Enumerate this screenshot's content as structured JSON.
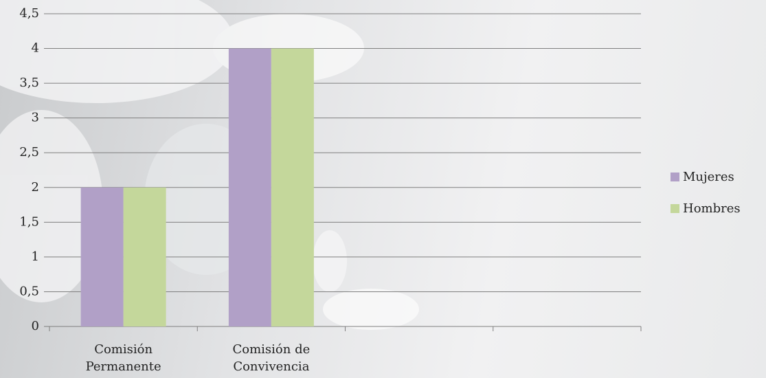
{
  "chart_data": {
    "type": "bar",
    "categories": [
      "Comisión Permanente",
      "Comisión de Convivencia",
      null,
      null
    ],
    "series": [
      {
        "name": "Mujeres",
        "color": "#b1a0c7",
        "values": [
          2,
          4,
          null,
          null
        ]
      },
      {
        "name": "Hombres",
        "color": "#c4d79b",
        "values": [
          2,
          4,
          null,
          null
        ]
      }
    ],
    "ylim": [
      0,
      4.5
    ],
    "yticks": [
      0,
      {
        "value": 0.5,
        "label": "0,5"
      },
      1,
      {
        "value": 1.5,
        "label": "1,5"
      },
      2,
      {
        "value": 2.5,
        "label": "2,5"
      },
      3,
      {
        "value": 3.5,
        "label": "3,5"
      },
      4,
      {
        "value": 4.5,
        "label": "4,5"
      }
    ],
    "grid": true,
    "legend": "right"
  }
}
